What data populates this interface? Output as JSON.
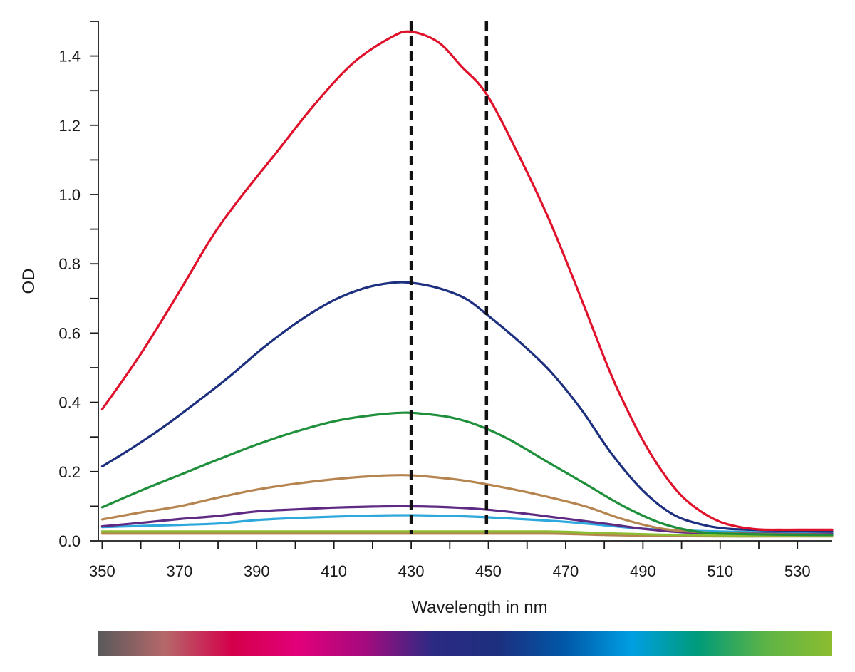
{
  "chart_data": {
    "type": "line",
    "xlabel": "Wavelength in nm",
    "ylabel": "OD",
    "xlim": [
      349,
      539
    ],
    "ylim": [
      0,
      1.5
    ],
    "x_ticks": [
      "350",
      "370",
      "390",
      "410",
      "430",
      "450",
      "470",
      "490",
      "510",
      "530"
    ],
    "y_ticks": [
      "0.0",
      "0.2",
      "0.4",
      "0.6",
      "0.8",
      "1.0",
      "1.2",
      "1.4"
    ],
    "grid": false,
    "legend": "none",
    "reference_lines_x": [
      430,
      449.5
    ],
    "spectrum_bar_colors": [
      "#58595b",
      "#b6686a",
      "#d4004a",
      "#e2007a",
      "#a40a7e",
      "#2c2a83",
      "#1d2f7f",
      "#0058a8",
      "#009fe3",
      "#009b78",
      "#5db446",
      "#8cbd30"
    ],
    "series": [
      {
        "color": "#e0112b",
        "x": [
          350,
          360,
          370,
          378,
          385,
          395,
          405,
          415,
          425,
          430,
          437,
          443,
          449.5,
          458,
          466,
          474,
          481,
          485,
          490,
          495,
          500,
          505,
          510,
          515,
          520,
          525,
          530,
          539
        ],
        "y": [
          0.38,
          0.54,
          0.72,
          0.87,
          0.98,
          1.12,
          1.26,
          1.38,
          1.455,
          1.47,
          1.44,
          1.37,
          1.29,
          1.11,
          0.92,
          0.7,
          0.5,
          0.4,
          0.29,
          0.2,
          0.13,
          0.085,
          0.055,
          0.04,
          0.033,
          0.032,
          0.032,
          0.032
        ]
      },
      {
        "color": "#1d2f7f",
        "x": [
          350,
          358,
          366,
          375,
          383,
          392,
          401,
          410,
          418,
          425,
          430,
          437,
          444,
          450,
          458,
          466,
          474,
          482,
          490,
          498,
          506,
          512,
          518,
          525,
          532,
          539
        ],
        "y": [
          0.215,
          0.27,
          0.33,
          0.405,
          0.475,
          0.56,
          0.635,
          0.695,
          0.73,
          0.745,
          0.745,
          0.73,
          0.7,
          0.65,
          0.575,
          0.49,
          0.38,
          0.25,
          0.145,
          0.075,
          0.045,
          0.035,
          0.032,
          0.03,
          0.028,
          0.027
        ]
      },
      {
        "color": "#1e8f3a",
        "x": [
          350,
          360,
          370,
          380,
          390,
          400,
          410,
          420,
          428,
          433,
          440,
          447,
          455,
          465,
          475,
          485,
          495,
          505,
          515,
          525,
          539
        ],
        "y": [
          0.097,
          0.145,
          0.19,
          0.235,
          0.278,
          0.315,
          0.345,
          0.363,
          0.37,
          0.367,
          0.357,
          0.335,
          0.295,
          0.23,
          0.165,
          0.1,
          0.05,
          0.025,
          0.02,
          0.018,
          0.017
        ]
      },
      {
        "color": "#b5844f",
        "x": [
          350,
          360,
          370,
          380,
          390,
          400,
          410,
          420,
          428,
          435,
          445,
          455,
          465,
          475,
          485,
          495,
          505,
          515,
          525,
          539
        ],
        "y": [
          0.062,
          0.082,
          0.1,
          0.125,
          0.148,
          0.165,
          0.178,
          0.187,
          0.19,
          0.185,
          0.172,
          0.152,
          0.128,
          0.1,
          0.062,
          0.035,
          0.025,
          0.021,
          0.019,
          0.018
        ]
      },
      {
        "color": "#5e2a83",
        "x": [
          350,
          360,
          370,
          380,
          390,
          400,
          410,
          420,
          428,
          440,
          450,
          460,
          470,
          480,
          490,
          500,
          510,
          520,
          530,
          539
        ],
        "y": [
          0.042,
          0.052,
          0.063,
          0.072,
          0.085,
          0.091,
          0.096,
          0.099,
          0.1,
          0.097,
          0.09,
          0.078,
          0.064,
          0.05,
          0.035,
          0.025,
          0.022,
          0.021,
          0.02,
          0.02
        ]
      },
      {
        "color": "#2ea8dc",
        "x": [
          350,
          360,
          370,
          380,
          390,
          400,
          410,
          420,
          430,
          440,
          450,
          460,
          470,
          480,
          490,
          500,
          510,
          520,
          530,
          539
        ],
        "y": [
          0.04,
          0.043,
          0.046,
          0.05,
          0.06,
          0.066,
          0.07,
          0.073,
          0.074,
          0.072,
          0.068,
          0.062,
          0.055,
          0.045,
          0.035,
          0.03,
          0.027,
          0.025,
          0.024,
          0.023
        ]
      },
      {
        "color": "#8cbd30",
        "x": [
          350,
          380,
          410,
          440,
          465,
          480,
          495,
          510,
          525,
          539
        ],
        "y": [
          0.027,
          0.027,
          0.027,
          0.027,
          0.027,
          0.022,
          0.018,
          0.016,
          0.016,
          0.016
        ]
      },
      {
        "color": "#b5844f",
        "x": [
          350,
          380,
          410,
          440,
          465,
          480,
          495,
          510,
          525,
          539
        ],
        "y": [
          0.021,
          0.021,
          0.021,
          0.021,
          0.021,
          0.017,
          0.014,
          0.013,
          0.013,
          0.013
        ]
      }
    ]
  }
}
